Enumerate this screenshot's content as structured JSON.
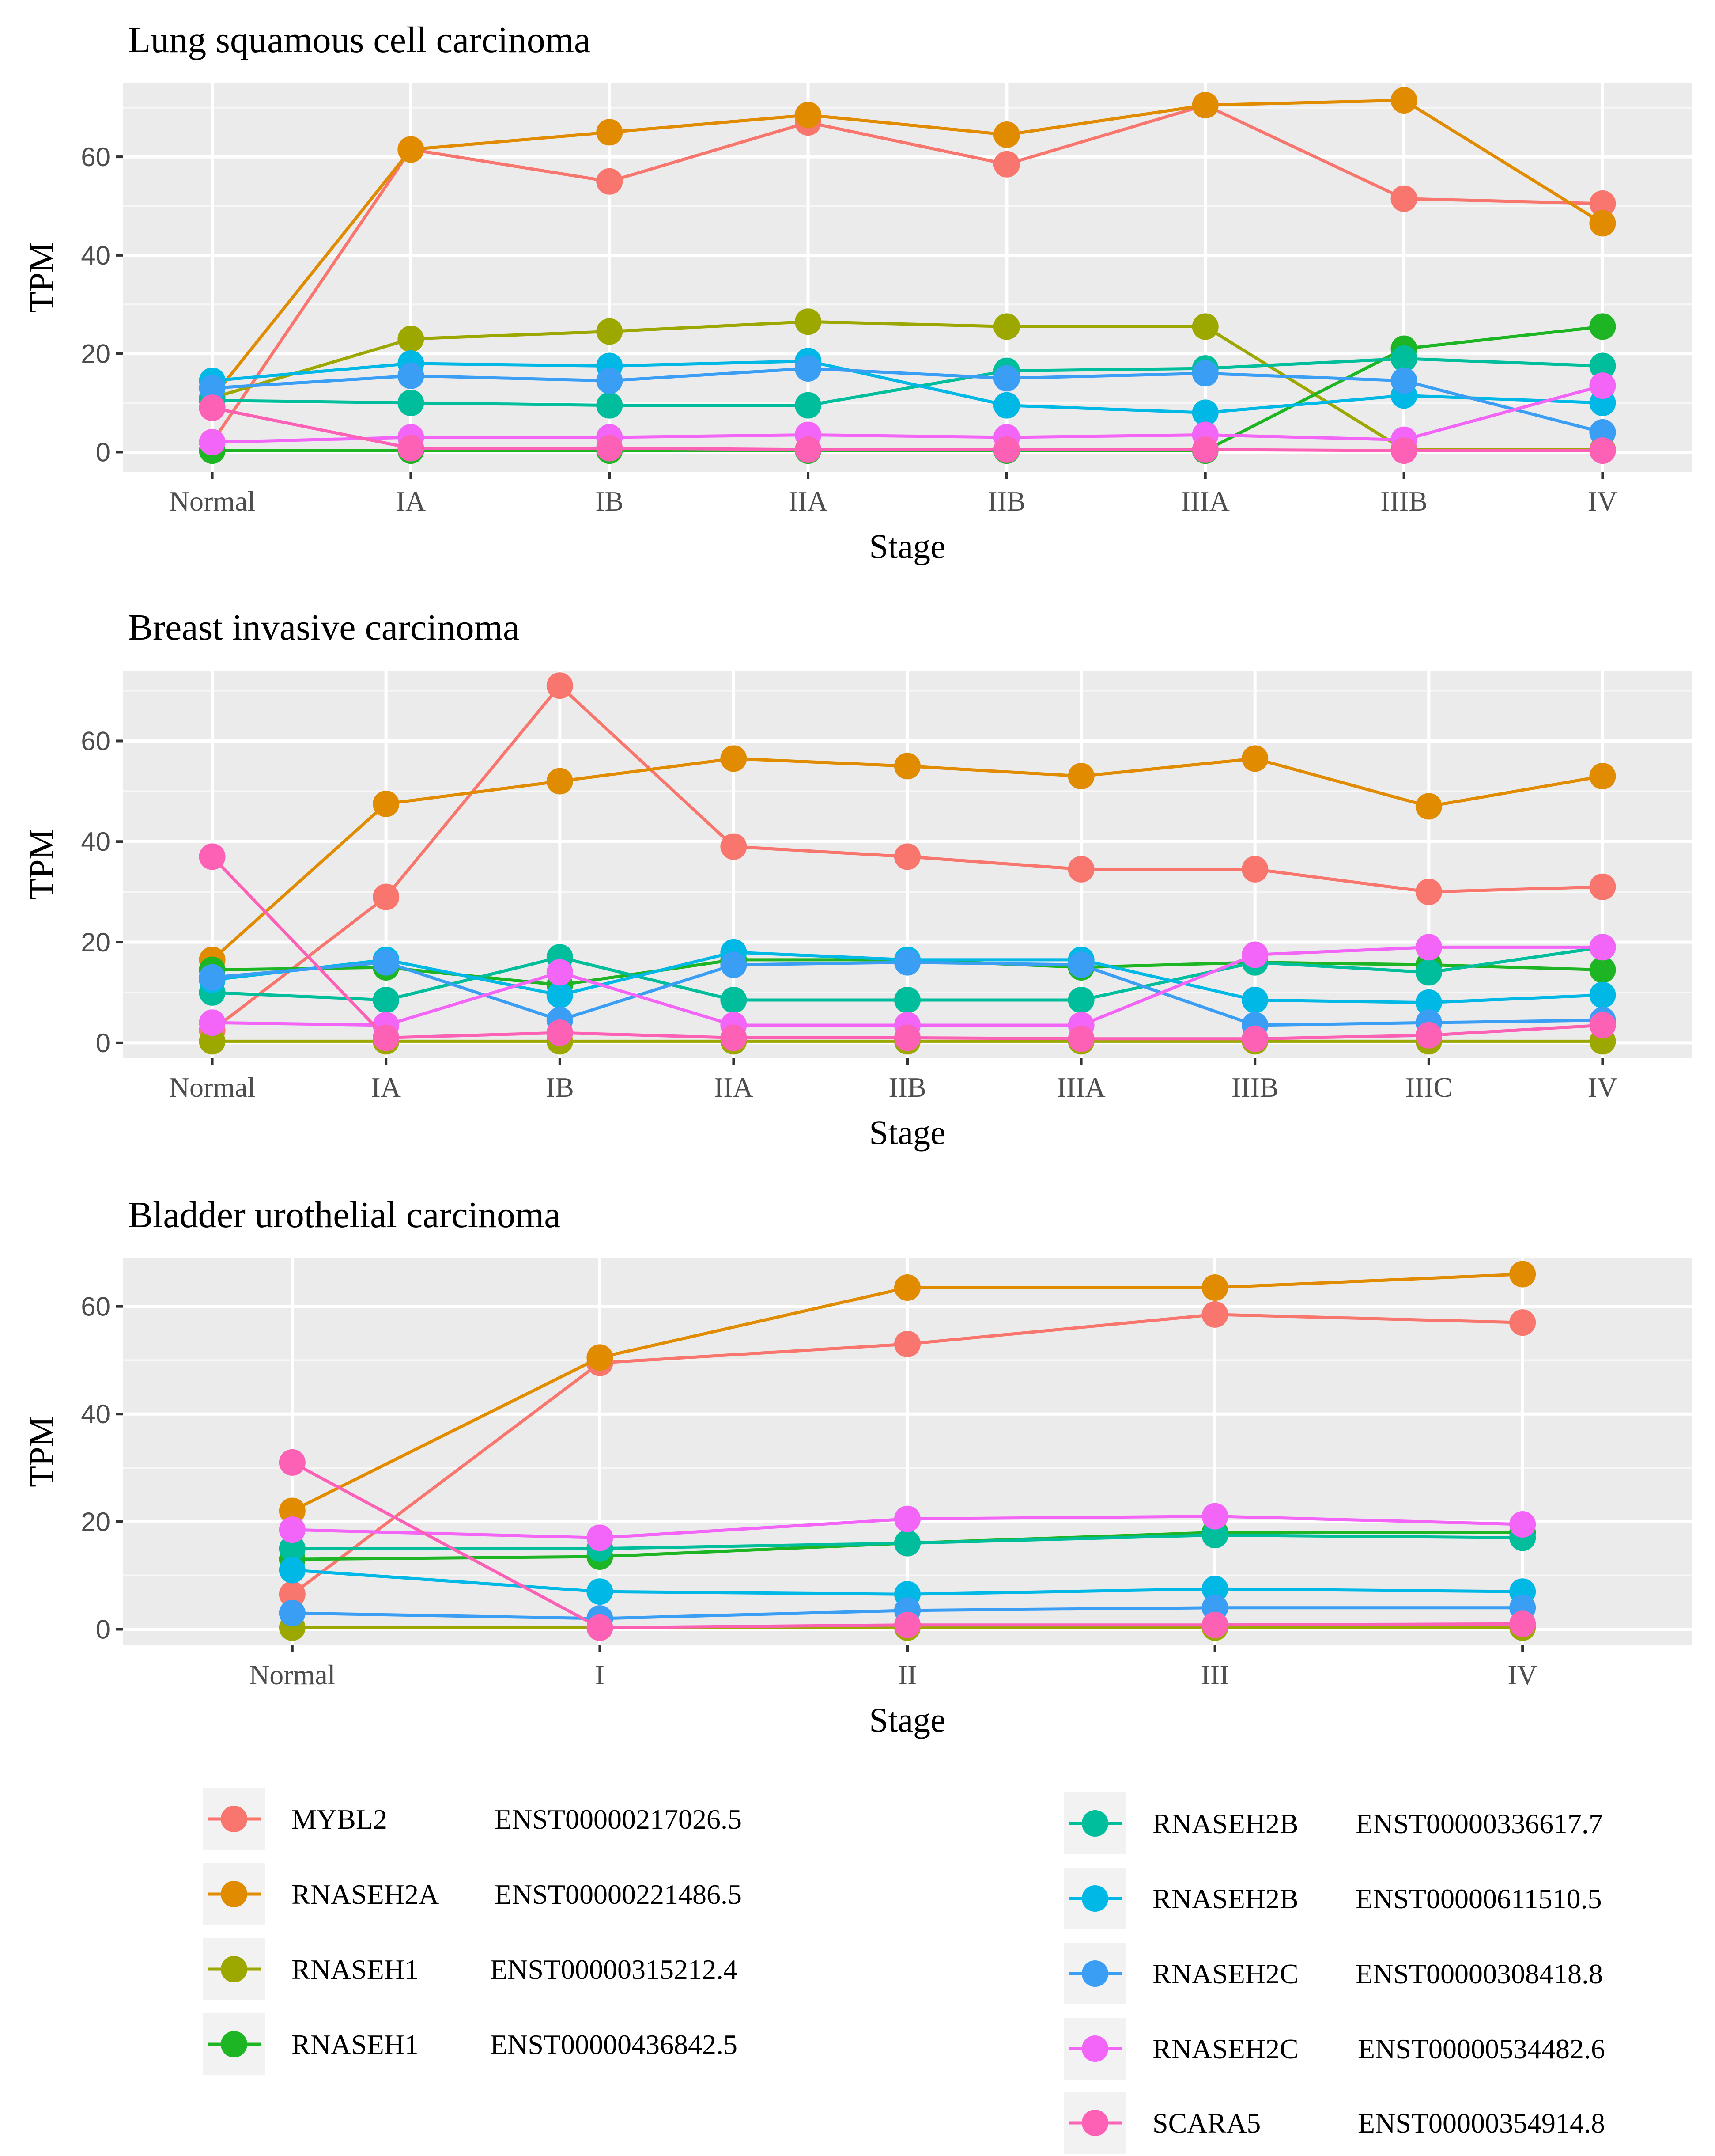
{
  "legend": [
    {
      "gene": "MYBL2",
      "transcript": "ENST00000217026.5",
      "color": "#F8766D"
    },
    {
      "gene": "RNASEH2A",
      "transcript": "ENST00000221486.5",
      "color": "#E08B00"
    },
    {
      "gene": "RNASEH1",
      "transcript": "ENST00000315212.4",
      "color": "#9CA700"
    },
    {
      "gene": "RNASEH1",
      "transcript": "ENST00000436842.5",
      "color": "#1EB524"
    },
    {
      "gene": "RNASEH2B",
      "transcript": "ENST00000336617.7",
      "color": "#00BE9C"
    },
    {
      "gene": "RNASEH2B",
      "transcript": "ENST00000611510.5",
      "color": "#00B8E5"
    },
    {
      "gene": "RNASEH2C",
      "transcript": "ENST00000308418.8",
      "color": "#3A9EF5"
    },
    {
      "gene": "RNASEH2C",
      "transcript": "ENST00000534482.6",
      "color": "#F265F7"
    },
    {
      "gene": "SCARA5",
      "transcript": "ENST00000354914.8",
      "color": "#FC61B6"
    }
  ],
  "chart_data": [
    {
      "type": "line",
      "title": "Lung squamous cell carcinoma",
      "xlabel": "Stage",
      "ylabel": "TPM",
      "ylim": [
        -4,
        75
      ],
      "yticks": [
        0,
        20,
        40,
        60
      ],
      "categories": [
        "Normal",
        "IA",
        "IB",
        "IIA",
        "IIB",
        "IIIA",
        "IIIB",
        "IV"
      ],
      "series": [
        {
          "name": "MYBL2 ENST00000217026.5",
          "values": [
            2,
            61.5,
            55,
            67,
            58.5,
            70.5,
            51.5,
            50.5
          ]
        },
        {
          "name": "RNASEH2A ENST00000221486.5",
          "values": [
            11,
            61.5,
            65,
            68.5,
            64.5,
            70.5,
            71.5,
            46.5
          ]
        },
        {
          "name": "RNASEH1 ENST00000315212.4",
          "values": [
            11,
            23,
            24.5,
            26.5,
            25.5,
            25.5,
            0.5,
            0.5
          ]
        },
        {
          "name": "RNASEH1 ENST00000436842.5",
          "values": [
            0.3,
            0.3,
            0.3,
            0.3,
            0.3,
            0.3,
            21,
            25.5
          ]
        },
        {
          "name": "RNASEH2B ENST00000336617.7",
          "values": [
            10.5,
            10,
            9.5,
            9.5,
            16.5,
            17,
            19,
            17.5
          ]
        },
        {
          "name": "RNASEH2B ENST00000611510.5",
          "values": [
            14.5,
            18,
            17.5,
            18.5,
            9.5,
            8,
            11.5,
            10
          ]
        },
        {
          "name": "RNASEH2C ENST00000308418.8",
          "values": [
            13,
            15.5,
            14.5,
            17,
            15,
            16,
            14.5,
            4
          ]
        },
        {
          "name": "RNASEH2C ENST00000534482.6",
          "values": [
            2,
            3,
            3,
            3.5,
            3,
            3.5,
            2.5,
            13.5
          ]
        },
        {
          "name": "SCARA5 ENST00000354914.8",
          "values": [
            9,
            0.8,
            0.8,
            0.5,
            0.5,
            0.5,
            0.3,
            0.3
          ]
        }
      ]
    },
    {
      "type": "line",
      "title": "Breast invasive carcinoma",
      "xlabel": "Stage",
      "ylabel": "TPM",
      "ylim": [
        -3,
        74
      ],
      "yticks": [
        0,
        20,
        40,
        60
      ],
      "categories": [
        "Normal",
        "IA",
        "IB",
        "IIA",
        "IIB",
        "IIIA",
        "IIIB",
        "IIIC",
        "IV"
      ],
      "series": [
        {
          "name": "MYBL2 ENST00000217026.5",
          "values": [
            2.5,
            29,
            71,
            39,
            37,
            34.5,
            34.5,
            30,
            31
          ]
        },
        {
          "name": "RNASEH2A ENST00000221486.5",
          "values": [
            16.5,
            47.5,
            52,
            56.5,
            55,
            53,
            56.5,
            47,
            53
          ]
        },
        {
          "name": "RNASEH1 ENST00000315212.4",
          "values": [
            0.3,
            0.3,
            0.3,
            0.3,
            0.3,
            0.3,
            0.3,
            0.3,
            0.3
          ]
        },
        {
          "name": "RNASEH1 ENST00000436842.5",
          "values": [
            14.5,
            15,
            11.5,
            16.5,
            16.5,
            15,
            16,
            15.5,
            14.5
          ]
        },
        {
          "name": "RNASEH2B ENST00000336617.7",
          "values": [
            10,
            8.5,
            17,
            8.5,
            8.5,
            8.5,
            16,
            14,
            19
          ]
        },
        {
          "name": "RNASEH2B ENST00000611510.5",
          "values": [
            12.5,
            16.5,
            9.5,
            18,
            16.5,
            16.5,
            8.5,
            8,
            9.5
          ]
        },
        {
          "name": "RNASEH2C ENST00000308418.8",
          "values": [
            13,
            16,
            4.5,
            15.5,
            16,
            15.5,
            3.5,
            4,
            4.5
          ]
        },
        {
          "name": "RNASEH2C ENST00000534482.6",
          "values": [
            4,
            3.5,
            14,
            3.5,
            3.5,
            3.5,
            17.5,
            19,
            19
          ]
        },
        {
          "name": "SCARA5 ENST00000354914.8",
          "values": [
            37,
            1,
            2,
            1,
            1,
            0.8,
            0.8,
            1.5,
            3.5
          ]
        }
      ]
    },
    {
      "type": "line",
      "title": "Bladder urothelial carcinoma",
      "xlabel": "Stage",
      "ylabel": "TPM",
      "ylim": [
        -3,
        69
      ],
      "yticks": [
        0,
        20,
        40,
        60
      ],
      "categories": [
        "Normal",
        "I",
        "II",
        "III",
        "IV"
      ],
      "series": [
        {
          "name": "MYBL2 ENST00000217026.5",
          "values": [
            6.5,
            49.5,
            53,
            58.5,
            57
          ]
        },
        {
          "name": "RNASEH2A ENST00000221486.5",
          "values": [
            22,
            50.5,
            63.5,
            63.5,
            66
          ]
        },
        {
          "name": "RNASEH1 ENST00000315212.4",
          "values": [
            0.3,
            0.3,
            0.3,
            0.3,
            0.3
          ]
        },
        {
          "name": "RNASEH1 ENST00000436842.5",
          "values": [
            13,
            13.5,
            16,
            18,
            18
          ]
        },
        {
          "name": "RNASEH2B ENST00000336617.7",
          "values": [
            15,
            15,
            16,
            17.5,
            17
          ]
        },
        {
          "name": "RNASEH2B ENST00000611510.5",
          "values": [
            11,
            7,
            6.5,
            7.5,
            7
          ]
        },
        {
          "name": "RNASEH2C ENST00000308418.8",
          "values": [
            3,
            2,
            3.5,
            4,
            4
          ]
        },
        {
          "name": "RNASEH2C ENST00000534482.6",
          "values": [
            18.5,
            17,
            20.5,
            21,
            19.5
          ]
        },
        {
          "name": "SCARA5 ENST00000354914.8",
          "values": [
            31,
            0.3,
            0.8,
            0.8,
            1
          ]
        }
      ]
    }
  ]
}
